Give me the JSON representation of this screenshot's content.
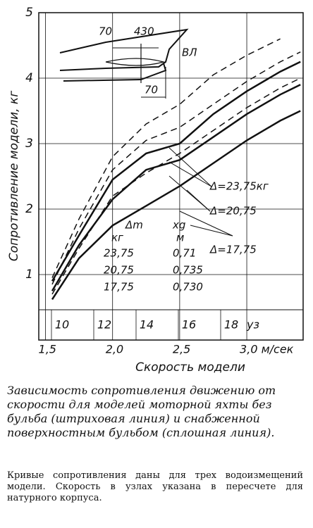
{
  "chart_data": {
    "type": "line",
    "ylabel": "Сопротивление модели, кг",
    "xlabel": "Скорость модели",
    "x": [
      1.55,
      1.75,
      2.0,
      2.25,
      2.5,
      2.75,
      3.0,
      3.25,
      3.4
    ],
    "series": [
      {
        "color": "#111",
        "style": "solid",
        "values": [
          0.9,
          1.6,
          2.45,
          2.85,
          3.0,
          3.45,
          3.8,
          4.1,
          4.25
        ]
      },
      {
        "color": "#111",
        "style": "solid",
        "values": [
          0.75,
          1.45,
          2.15,
          2.6,
          2.75,
          3.1,
          3.45,
          3.75,
          3.9
        ]
      },
      {
        "color": "#111",
        "style": "solid",
        "values": [
          0.62,
          1.25,
          1.75,
          2.05,
          2.35,
          2.7,
          3.05,
          3.35,
          3.5
        ]
      },
      {
        "color": "#111",
        "style": "dashed",
        "values": [
          0.95,
          1.85,
          2.8,
          3.3,
          3.6,
          4.05,
          4.35,
          4.6,
          null
        ]
      },
      {
        "color": "#111",
        "style": "dashed",
        "values": [
          0.85,
          1.7,
          2.6,
          3.05,
          3.25,
          3.6,
          3.95,
          4.25,
          4.4
        ]
      },
      {
        "color": "#111",
        "style": "dashed",
        "values": [
          0.7,
          1.4,
          2.2,
          2.55,
          2.85,
          3.2,
          3.55,
          3.85,
          4.0
        ]
      }
    ],
    "xlim": [
      1.45,
      3.42
    ],
    "xticks": [
      {
        "value": 1.5,
        "label": "1,5"
      },
      {
        "value": 2.0,
        "label": "2,0"
      },
      {
        "value": 2.5,
        "label": "2,5"
      },
      {
        "value": 3.0,
        "label": "3,0 м/сек"
      }
    ],
    "ylim": [
      0,
      5
    ],
    "yticks": [
      1,
      2,
      3,
      4,
      5
    ],
    "x2lim": [
      8.9,
      21.4
    ],
    "x2ticks": [
      10,
      12,
      14,
      16,
      18
    ],
    "x2unit": "уз",
    "grid": true,
    "annotations": [
      "Δ=23,75кг",
      "Δ=20,75",
      "Δ=17,75"
    ],
    "table": {
      "header": [
        "Δm",
        "xg"
      ],
      "units": [
        "кг",
        "м"
      ],
      "rows": [
        [
          "23,75",
          "0,71"
        ],
        [
          "20,75",
          "0,735"
        ],
        [
          "17,75",
          "0,730"
        ]
      ]
    },
    "inset": {
      "labels": [
        "70",
        "430",
        "ВЛ",
        "70"
      ]
    }
  },
  "caption": {
    "main": "Зависимость сопротивления движению от скорости для моделей моторной яхты без бульба (штриховая линия) и снабженной поверхностным бульбом (сплошная линия).",
    "note": "Кривые сопротивления даны для трех водоизмещений модели. Скорость в узлах указана в пересчете для натурного корпуса."
  }
}
